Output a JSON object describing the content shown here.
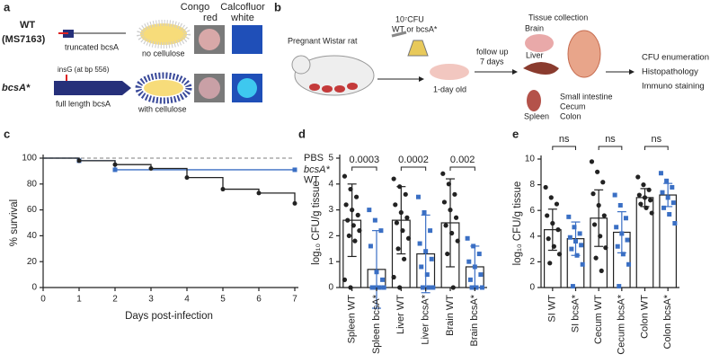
{
  "panel_a": {
    "label": "a",
    "wt": "WT",
    "strain": "(MS7163)",
    "truncated": "truncated bcsA",
    "no_cellulose": "no cellulose",
    "congo": [
      "Congo",
      "red"
    ],
    "calcofluor": [
      "Calcofluor",
      "white"
    ],
    "mutant": "bcsA*",
    "insertion": "insG (at bp 556)",
    "full_length": "full length bcsA",
    "with_cellulose": "with cellulose"
  },
  "panel_b": {
    "label": "b",
    "rat": "Pregnant Wistar rat",
    "dose": "10⁷CFU",
    "groups": "WT or bcsA*",
    "pup": "1-day old",
    "follow": [
      "follow up",
      "7 days"
    ],
    "tissue": "Tissue collection",
    "organs": [
      "Brain",
      "Liver",
      "Spleen",
      "Small intestine",
      "Cecum",
      "Colon"
    ],
    "readouts": [
      "CFU enumeration",
      "Histopathology",
      "Immuno staining"
    ]
  },
  "panel_labels": [
    "c",
    "d",
    "e"
  ],
  "chart_data": [
    {
      "type": "step",
      "xlabel": "Days post-infection",
      "ylabel": "% survival",
      "xlim": [
        0,
        7
      ],
      "ylim": [
        0,
        100
      ],
      "xticks": [
        0,
        1,
        2,
        3,
        4,
        5,
        6,
        7
      ],
      "yticks": [
        0,
        20,
        40,
        60,
        80,
        100
      ],
      "series": [
        {
          "name": "PBS",
          "color": "#999999",
          "dashed": true,
          "markers": false,
          "x": [
            0,
            7
          ],
          "values": [
            100,
            100
          ]
        },
        {
          "name": "bcsA*",
          "color": "#3a6fc4",
          "dashed": false,
          "markers": true,
          "x": [
            0,
            1,
            2,
            7
          ],
          "values": [
            100,
            98,
            91,
            91
          ]
        },
        {
          "name": "WT",
          "color": "#222222",
          "dashed": false,
          "markers": true,
          "x": [
            0,
            1,
            2,
            3,
            4,
            5,
            6,
            7
          ],
          "values": [
            100,
            98,
            95,
            92,
            85,
            76,
            73,
            65
          ]
        }
      ]
    },
    {
      "type": "bar",
      "ylabel": "log₁₀ CFU/g tissue",
      "ylim": [
        0,
        5
      ],
      "yticks": [
        0,
        1,
        2,
        3,
        4,
        5
      ],
      "categories": [
        "Spleen WT",
        "Spleen bcsA*",
        "Liver WT",
        "Liver bcsA*",
        "Brain WT",
        "Brain bcsA*"
      ],
      "values": [
        2.6,
        0.7,
        2.6,
        1.3,
        2.5,
        0.8
      ],
      "errors": [
        1.4,
        1.5,
        1.3,
        1.5,
        1.7,
        0.8
      ],
      "colors": [
        "#222222",
        "#3a6fc4",
        "#222222",
        "#3a6fc4",
        "#222222",
        "#3a6fc4"
      ],
      "markers": [
        "circle",
        "square",
        "circle",
        "square",
        "circle",
        "square"
      ],
      "points": [
        [
          4.3,
          3.8,
          3.5,
          3.2,
          3.0,
          2.8,
          2.6,
          2.4,
          2.2,
          2.0,
          1.8,
          0.3,
          0
        ],
        [
          3.0,
          2.6,
          2.2,
          1.6,
          0.6,
          0.3,
          0,
          0,
          0,
          0,
          0
        ],
        [
          4.2,
          3.9,
          3.6,
          3.2,
          2.9,
          2.7,
          2.5,
          2.2,
          1.9,
          1.5,
          1.1,
          0.4,
          0
        ],
        [
          3.5,
          2.9,
          2.2,
          1.7,
          1.4,
          1.1,
          0.8,
          0.5,
          0,
          0,
          0
        ],
        [
          4.4,
          4.0,
          3.6,
          3.3,
          3.0,
          2.7,
          2.4,
          2.1,
          1.8,
          1.3,
          0
        ],
        [
          1.9,
          1.6,
          1.3,
          1.0,
          0.8,
          0.5,
          0.3,
          0,
          0,
          0
        ]
      ],
      "pvalues": [
        "0.0003",
        "0.0002",
        "0.002"
      ]
    },
    {
      "type": "bar",
      "ylabel": "log₁₀ CFU/g tissue",
      "ylim": [
        0,
        10
      ],
      "yticks": [
        0,
        2,
        4,
        6,
        8,
        10
      ],
      "categories": [
        "SI WT",
        "SI bcsA*",
        "Cecum WT",
        "Cecum bcsA*",
        "Colon WT",
        "Colon bcsA*"
      ],
      "values": [
        4.5,
        3.8,
        5.4,
        4.3,
        7.0,
        7.2
      ],
      "errors": [
        1.6,
        1.3,
        2.2,
        1.6,
        0.7,
        0.9
      ],
      "colors": [
        "#222222",
        "#3a6fc4",
        "#222222",
        "#3a6fc4",
        "#222222",
        "#3a6fc4"
      ],
      "markers": [
        "circle",
        "square",
        "circle",
        "square",
        "circle",
        "square"
      ],
      "points": [
        [
          7.8,
          7.0,
          6.5,
          5.6,
          5.0,
          4.5,
          3.8,
          3.2,
          2.6,
          1.9
        ],
        [
          5.5,
          4.7,
          4.2,
          3.9,
          3.6,
          3.3,
          3.0,
          2.5,
          1.8,
          0.1
        ],
        [
          9.8,
          9.0,
          8.2,
          7.3,
          6.4,
          5.6,
          4.9,
          4.0,
          3.1,
          2.3,
          1.3
        ],
        [
          7.2,
          6.4,
          5.4,
          4.7,
          4.2,
          3.7,
          3.2,
          2.6,
          1.8,
          0.1
        ],
        [
          8.6,
          8.0,
          7.6,
          7.2,
          7.0,
          6.8,
          6.5,
          6.2,
          5.8
        ],
        [
          8.9,
          8.3,
          7.8,
          7.4,
          7.0,
          6.6,
          6.2,
          5.7,
          5.0
        ]
      ],
      "pvalues": [
        "ns",
        "ns",
        "ns"
      ]
    }
  ]
}
